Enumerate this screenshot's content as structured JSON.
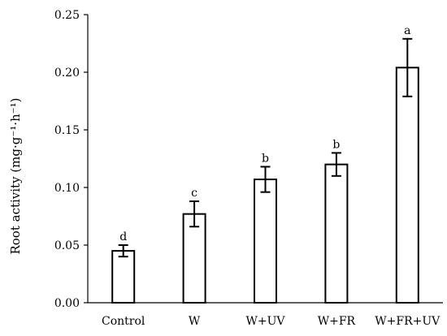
{
  "chart_data": {
    "type": "bar",
    "title": "",
    "xlabel": "",
    "ylabel": "Root activity (mg·g⁻¹·h⁻¹)",
    "ylim": [
      0,
      0.25
    ],
    "yticks": [
      "0.00",
      "0.05",
      "0.10",
      "0.15",
      "0.20",
      "0.25"
    ],
    "categories": [
      "Control",
      "W",
      "W+UV",
      "W+FR",
      "W+FR+UV"
    ],
    "values": [
      0.045,
      0.077,
      0.107,
      0.12,
      0.204
    ],
    "errors": [
      0.005,
      0.011,
      0.011,
      0.01,
      0.025
    ],
    "significance": [
      "d",
      "c",
      "b",
      "b",
      "a"
    ],
    "grid": false,
    "bar_fill": "#ffffff",
    "bar_stroke": "#000000"
  }
}
